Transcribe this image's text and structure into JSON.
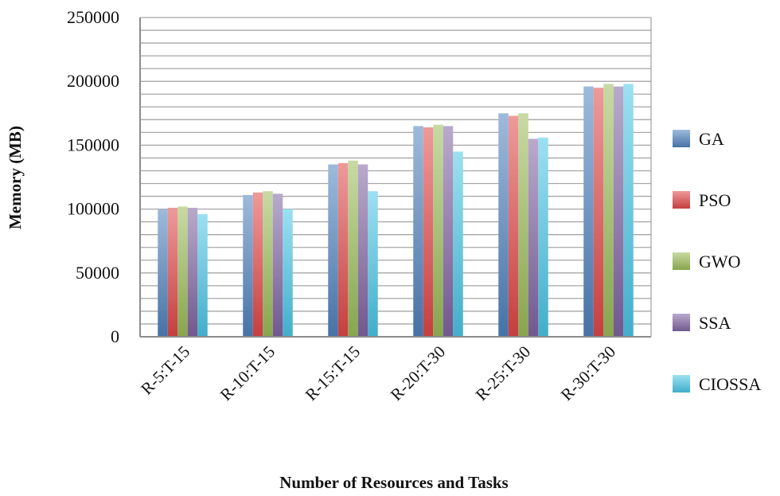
{
  "chart_data": {
    "type": "bar",
    "title": "",
    "xlabel": "Number of Resources and Tasks",
    "ylabel": "Memory (MB)",
    "ylim": [
      0,
      250000
    ],
    "yticks": [
      0,
      50000,
      100000,
      150000,
      200000,
      250000
    ],
    "ytick_labels": [
      "0",
      "50000",
      "100000",
      "150000",
      "200000",
      "250000"
    ],
    "grid": true,
    "legend": "right",
    "categories": [
      "R-5:T-15",
      "R-10:T-15",
      "R-15:T-15",
      "R-20:T-30",
      "R-25:T-30",
      "R-30:T-30"
    ],
    "series": [
      {
        "name": "GA",
        "color": "#4f81bd",
        "values": [
          100000,
          111000,
          135000,
          165000,
          175000,
          196000
        ]
      },
      {
        "name": "PSO",
        "color": "#e04848",
        "values": [
          101000,
          113000,
          136000,
          164000,
          173000,
          195000
        ]
      },
      {
        "name": "GWO",
        "color": "#9bbb59",
        "values": [
          102000,
          114000,
          138000,
          166000,
          175000,
          198000
        ]
      },
      {
        "name": "SSA",
        "color": "#8064a2",
        "values": [
          101000,
          112000,
          135000,
          165000,
          155000,
          196000
        ]
      },
      {
        "name": "CIOSSA",
        "color": "#4bc6e6",
        "values": [
          96000,
          100000,
          114000,
          145000,
          156000,
          198000
        ]
      }
    ]
  }
}
